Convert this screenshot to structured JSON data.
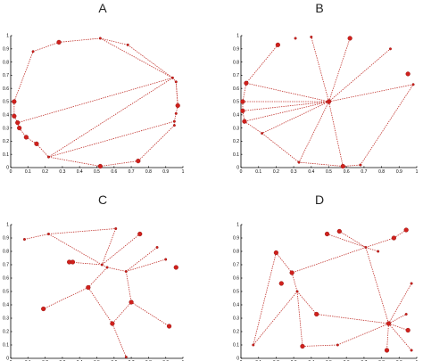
{
  "panels": [
    {
      "label": "A",
      "xticks": [
        "0",
        "0.1",
        "0.2",
        "0.3",
        "0.4",
        "0.5",
        "0.6",
        "0.7",
        "0.8",
        "0.9",
        "1"
      ],
      "yticks": [
        "0",
        "0.1",
        "0.2",
        "0.3",
        "0.4",
        "0.5",
        "0.6",
        "0.7",
        "0.8",
        "0.9",
        "1"
      ],
      "nodes": [
        {
          "x": 0.02,
          "y": 0.5,
          "label": "",
          "big": true
        },
        {
          "x": 0.02,
          "y": 0.39,
          "label": "",
          "big": true
        },
        {
          "x": 0.04,
          "y": 0.34,
          "label": "",
          "big": true
        },
        {
          "x": 0.05,
          "y": 0.3,
          "label": "",
          "big": true
        },
        {
          "x": 0.09,
          "y": 0.23,
          "label": "",
          "big": true
        },
        {
          "x": 0.15,
          "y": 0.18,
          "label": "",
          "big": true
        },
        {
          "x": 0.22,
          "y": 0.08,
          "label": "",
          "big": false
        },
        {
          "x": 0.13,
          "y": 0.88,
          "label": "",
          "big": false
        },
        {
          "x": 0.28,
          "y": 0.95,
          "label": "",
          "big": true
        },
        {
          "x": 0.52,
          "y": 0.98,
          "label": "",
          "big": false
        },
        {
          "x": 0.68,
          "y": 0.93,
          "label": "",
          "big": false
        },
        {
          "x": 0.94,
          "y": 0.68,
          "label": "",
          "big": false
        },
        {
          "x": 0.96,
          "y": 0.65,
          "label": "",
          "big": false
        },
        {
          "x": 0.97,
          "y": 0.47,
          "label": "",
          "big": true
        },
        {
          "x": 0.96,
          "y": 0.41,
          "label": "",
          "big": false
        },
        {
          "x": 0.95,
          "y": 0.35,
          "label": "",
          "big": false
        },
        {
          "x": 0.95,
          "y": 0.32,
          "label": "",
          "big": false
        },
        {
          "x": 0.74,
          "y": 0.05,
          "label": "",
          "big": true
        },
        {
          "x": 0.52,
          "y": 0.01,
          "label": "",
          "big": true
        }
      ],
      "edges": [
        [
          0,
          1
        ],
        [
          1,
          2
        ],
        [
          2,
          3
        ],
        [
          3,
          4
        ],
        [
          4,
          5
        ],
        [
          5,
          6
        ],
        [
          0,
          7
        ],
        [
          7,
          8
        ],
        [
          8,
          9
        ],
        [
          9,
          10
        ],
        [
          10,
          11
        ],
        [
          11,
          12
        ],
        [
          12,
          13
        ],
        [
          13,
          14
        ],
        [
          14,
          15
        ],
        [
          15,
          16
        ],
        [
          16,
          17
        ],
        [
          17,
          18
        ],
        [
          18,
          6
        ],
        [
          9,
          11
        ],
        [
          11,
          2
        ],
        [
          11,
          6
        ],
        [
          15,
          6
        ],
        [
          12,
          13
        ]
      ]
    },
    {
      "label": "B",
      "xticks": [
        "0",
        "0.1",
        "0.2",
        "0.3",
        "0.4",
        "0.5",
        "0.6",
        "0.7",
        "0.8",
        "0.9",
        "1"
      ],
      "yticks": [
        "0",
        "0.1",
        "0.2",
        "0.3",
        "0.4",
        "0.5",
        "0.6",
        "0.7",
        "0.8",
        "0.9",
        "1"
      ],
      "nodes": [
        {
          "x": 0.5,
          "y": 0.5,
          "label": "",
          "big": true
        },
        {
          "x": 0.21,
          "y": 0.93,
          "label": "",
          "big": true
        },
        {
          "x": 0.03,
          "y": 0.64,
          "label": "",
          "big": true
        },
        {
          "x": 0.01,
          "y": 0.5,
          "label": "",
          "big": true
        },
        {
          "x": 0.01,
          "y": 0.43,
          "label": "",
          "big": true
        },
        {
          "x": 0.02,
          "y": 0.35,
          "label": "",
          "big": true
        },
        {
          "x": 0.12,
          "y": 0.26,
          "label": "",
          "big": false
        },
        {
          "x": 0.33,
          "y": 0.04,
          "label": "",
          "big": false
        },
        {
          "x": 0.58,
          "y": 0.01,
          "label": "",
          "big": true
        },
        {
          "x": 0.68,
          "y": 0.02,
          "label": "",
          "big": false
        },
        {
          "x": 0.98,
          "y": 0.63,
          "label": "",
          "big": false
        },
        {
          "x": 0.85,
          "y": 0.9,
          "label": "",
          "big": false
        },
        {
          "x": 0.62,
          "y": 0.98,
          "label": "",
          "big": true
        },
        {
          "x": 0.4,
          "y": 0.99,
          "label": "",
          "big": false
        },
        {
          "x": 0.31,
          "y": 0.98,
          "label": "",
          "big": false
        },
        {
          "x": 0.95,
          "y": 0.71,
          "label": "",
          "big": true
        }
      ],
      "edges": [
        [
          0,
          2
        ],
        [
          0,
          3
        ],
        [
          0,
          4
        ],
        [
          0,
          5
        ],
        [
          0,
          6
        ],
        [
          0,
          7
        ],
        [
          0,
          8
        ],
        [
          0,
          10
        ],
        [
          0,
          11
        ],
        [
          0,
          12
        ],
        [
          0,
          13
        ],
        [
          1,
          2
        ],
        [
          2,
          3
        ],
        [
          3,
          4
        ],
        [
          4,
          5
        ],
        [
          5,
          6
        ],
        [
          6,
          7
        ],
        [
          7,
          8
        ],
        [
          8,
          9
        ],
        [
          9,
          10
        ]
      ]
    },
    {
      "label": "C",
      "xticks": [
        "0",
        "0.1",
        "0.2",
        "0.3",
        "0.4",
        "0.5",
        "0.6",
        "0.7",
        "0.8",
        "0.9",
        "1"
      ],
      "yticks": [
        "0",
        "0.1",
        "0.2",
        "0.3",
        "0.4",
        "0.5",
        "0.6",
        "0.7",
        "0.8",
        "0.9",
        "1"
      ],
      "nodes": [
        {
          "x": 0.08,
          "y": 0.89,
          "label": "",
          "big": false
        },
        {
          "x": 0.22,
          "y": 0.93,
          "label": "",
          "big": false
        },
        {
          "x": 0.61,
          "y": 0.97,
          "label": "",
          "big": false
        },
        {
          "x": 0.75,
          "y": 0.93,
          "label": "",
          "big": true
        },
        {
          "x": 0.34,
          "y": 0.72,
          "label": "",
          "big": true
        },
        {
          "x": 0.36,
          "y": 0.72,
          "label": "",
          "big": true
        },
        {
          "x": 0.53,
          "y": 0.7,
          "label": "",
          "big": false
        },
        {
          "x": 0.56,
          "y": 0.68,
          "label": "",
          "big": false
        },
        {
          "x": 0.67,
          "y": 0.65,
          "label": "",
          "big": false
        },
        {
          "x": 0.85,
          "y": 0.83,
          "label": "",
          "big": false
        },
        {
          "x": 0.9,
          "y": 0.74,
          "label": "",
          "big": false
        },
        {
          "x": 0.96,
          "y": 0.68,
          "label": "",
          "big": true
        },
        {
          "x": 0.45,
          "y": 0.53,
          "label": "",
          "big": true
        },
        {
          "x": 0.7,
          "y": 0.42,
          "label": "",
          "big": true
        },
        {
          "x": 0.19,
          "y": 0.37,
          "label": "",
          "big": true
        },
        {
          "x": 0.59,
          "y": 0.26,
          "label": "",
          "big": true
        },
        {
          "x": 0.92,
          "y": 0.24,
          "label": "",
          "big": true
        },
        {
          "x": 0.67,
          "y": 0.01,
          "label": "",
          "big": false
        }
      ],
      "edges": [
        [
          0,
          1
        ],
        [
          1,
          2
        ],
        [
          1,
          6
        ],
        [
          3,
          6
        ],
        [
          4,
          6
        ],
        [
          6,
          7
        ],
        [
          7,
          8
        ],
        [
          8,
          9
        ],
        [
          8,
          10
        ],
        [
          7,
          12
        ],
        [
          8,
          13
        ],
        [
          12,
          14
        ],
        [
          12,
          15
        ],
        [
          13,
          15
        ],
        [
          13,
          16
        ],
        [
          15,
          17
        ],
        [
          2,
          6
        ]
      ]
    },
    {
      "label": "D",
      "xticks": [
        "0",
        "0.1",
        "0.2",
        "0.3",
        "0.4",
        "0.5",
        "0.6",
        "0.7",
        "0.8",
        "0.9",
        "1"
      ],
      "yticks": [
        "0",
        "0.1",
        "0.2",
        "0.3",
        "0.4",
        "0.5",
        "0.6",
        "0.7",
        "0.8",
        "0.9",
        "1"
      ],
      "nodes": [
        {
          "x": 0.2,
          "y": 0.79,
          "label": "",
          "big": true
        },
        {
          "x": 0.49,
          "y": 0.93,
          "label": "",
          "big": true
        },
        {
          "x": 0.56,
          "y": 0.95,
          "label": "",
          "big": true
        },
        {
          "x": 0.71,
          "y": 0.83,
          "label": "",
          "big": false
        },
        {
          "x": 0.87,
          "y": 0.9,
          "label": "",
          "big": true
        },
        {
          "x": 0.94,
          "y": 0.96,
          "label": "",
          "big": true
        },
        {
          "x": 0.78,
          "y": 0.8,
          "label": "",
          "big": false
        },
        {
          "x": 0.29,
          "y": 0.64,
          "label": "",
          "big": true
        },
        {
          "x": 0.23,
          "y": 0.56,
          "label": "",
          "big": true
        },
        {
          "x": 0.32,
          "y": 0.5,
          "label": "",
          "big": false
        },
        {
          "x": 0.43,
          "y": 0.33,
          "label": "",
          "big": true
        },
        {
          "x": 0.84,
          "y": 0.26,
          "label": "",
          "big": true
        },
        {
          "x": 0.97,
          "y": 0.56,
          "label": "",
          "big": false
        },
        {
          "x": 0.94,
          "y": 0.33,
          "label": "",
          "big": false
        },
        {
          "x": 0.35,
          "y": 0.09,
          "label": "",
          "big": true
        },
        {
          "x": 0.55,
          "y": 0.1,
          "label": "",
          "big": false
        },
        {
          "x": 0.83,
          "y": 0.06,
          "label": "",
          "big": true
        },
        {
          "x": 0.95,
          "y": 0.21,
          "label": "",
          "big": true
        },
        {
          "x": 0.97,
          "y": 0.06,
          "label": "",
          "big": false
        },
        {
          "x": 0.07,
          "y": 0.1,
          "label": "",
          "big": false
        }
      ],
      "edges": [
        [
          0,
          7
        ],
        [
          0,
          19
        ],
        [
          1,
          3
        ],
        [
          2,
          3
        ],
        [
          3,
          4
        ],
        [
          3,
          6
        ],
        [
          3,
          7
        ],
        [
          3,
          11
        ],
        [
          7,
          9
        ],
        [
          9,
          10
        ],
        [
          9,
          14
        ],
        [
          9,
          19
        ],
        [
          10,
          11
        ],
        [
          11,
          12
        ],
        [
          11,
          13
        ],
        [
          11,
          16
        ],
        [
          11,
          17
        ],
        [
          11,
          18
        ],
        [
          14,
          15
        ],
        [
          15,
          11
        ],
        [
          4,
          5
        ]
      ]
    }
  ]
}
